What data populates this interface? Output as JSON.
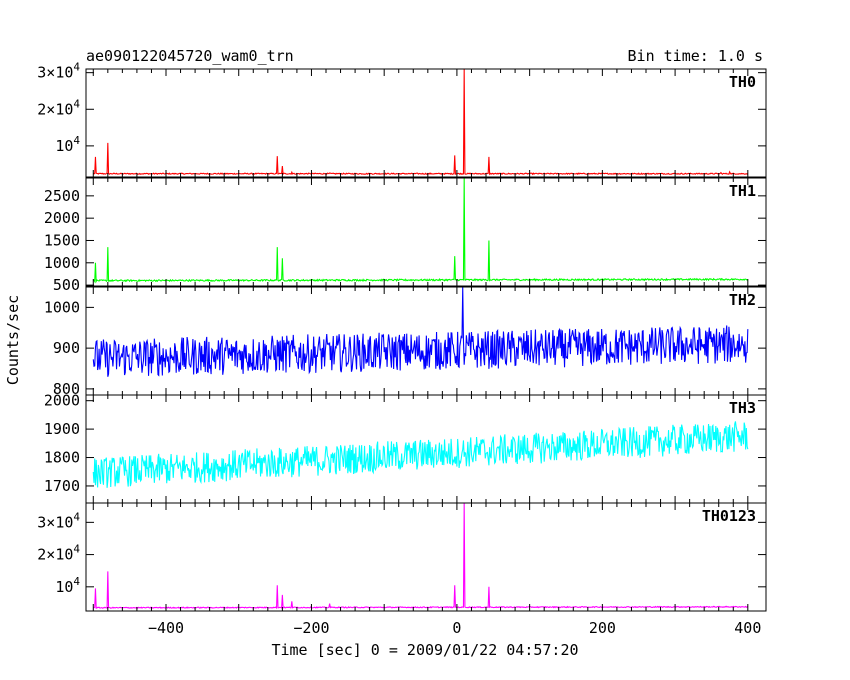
{
  "header": {
    "title": "ae090122045720_wam0_trn",
    "bin_time": "Bin time: 1.0 s"
  },
  "axes": {
    "ylabel": "Counts/sec",
    "xlabel": "Time [sec] 0 = 2009/01/22 04:57:20"
  },
  "chart_data": {
    "type": "line",
    "title": "ae090122045720_wam0_trn",
    "xlabel": "Time [sec] 0 = 2009/01/22 04:57:20",
    "ylabel": "Counts/sec",
    "xlim": [
      -510,
      425
    ],
    "x_ticks": [
      -400,
      -200,
      0,
      200,
      400
    ],
    "x_tick_labels": [
      "−400",
      "−200",
      "0",
      "200",
      "400"
    ],
    "grid": false,
    "bin_time": 1.0,
    "panels": [
      {
        "name": "TH0",
        "color": "#ff0000",
        "ylim": [
          1500,
          31000
        ],
        "yticks": [
          10000,
          20000,
          30000
        ],
        "ytick_labels": [
          [
            "",
            "10",
            "4"
          ],
          [
            "2×",
            "10",
            "4"
          ],
          [
            "3×",
            "10",
            "4"
          ]
        ],
        "baseline": 2400,
        "noise": 300,
        "trend": 0,
        "spikes": [
          [
            -497,
            7000
          ],
          [
            -480,
            10800
          ],
          [
            -247,
            7200
          ],
          [
            -240,
            4500
          ],
          [
            -227,
            2800
          ],
          [
            -175,
            2600
          ],
          [
            -3,
            7400
          ],
          [
            10,
            31000
          ],
          [
            44,
            7000
          ],
          [
            363,
            2700
          ],
          [
            375,
            2900
          ]
        ]
      },
      {
        "name": "TH1",
        "color": "#00ff00",
        "ylim": [
          480,
          2900
        ],
        "yticks": [
          500,
          1000,
          1500,
          2000,
          2500
        ],
        "ytick_labels": [
          [
            "",
            "500",
            ""
          ],
          [
            "",
            "1000",
            ""
          ],
          [
            "",
            "1500",
            ""
          ],
          [
            "",
            "2000",
            ""
          ],
          [
            "",
            "2500",
            ""
          ]
        ],
        "baseline": 600,
        "noise": 35,
        "trend": 30,
        "spikes": [
          [
            -497,
            1000
          ],
          [
            -480,
            1350
          ],
          [
            -247,
            1350
          ],
          [
            -240,
            1100
          ],
          [
            -3,
            1150
          ],
          [
            10,
            2900
          ],
          [
            44,
            1500
          ]
        ]
      },
      {
        "name": "TH2",
        "color": "#0000ff",
        "ylim": [
          785,
          1050
        ],
        "yticks": [
          800,
          900,
          1000
        ],
        "ytick_labels": [
          [
            "",
            "800",
            ""
          ],
          [
            "",
            "900",
            ""
          ],
          [
            "",
            "1000",
            ""
          ]
        ],
        "baseline": 875,
        "noise": 95,
        "trend": 35,
        "spikes": [
          [
            8,
            1050
          ]
        ]
      },
      {
        "name": "TH3",
        "color": "#00ffff",
        "ylim": [
          1640,
          2020
        ],
        "yticks": [
          1700,
          1800,
          1900,
          2000
        ],
        "ytick_labels": [
          [
            "",
            "1700",
            ""
          ],
          [
            "",
            "1800",
            ""
          ],
          [
            "",
            "1900",
            ""
          ],
          [
            "",
            "2000",
            ""
          ]
        ],
        "baseline": 1745,
        "noise": 110,
        "trend": 130,
        "spikes": []
      },
      {
        "name": "TH0123",
        "color": "#ff00ff",
        "ylim": [
          2500,
          36000
        ],
        "yticks": [
          10000,
          20000,
          30000
        ],
        "ytick_labels": [
          [
            "",
            "10",
            "4"
          ],
          [
            "2×",
            "10",
            "4"
          ],
          [
            "3×",
            "10",
            "4"
          ]
        ],
        "baseline": 3500,
        "noise": 300,
        "trend": 300,
        "spikes": [
          [
            -497,
            9500
          ],
          [
            -480,
            14800
          ],
          [
            -247,
            10500
          ],
          [
            -240,
            7500
          ],
          [
            -227,
            5500
          ],
          [
            -175,
            4800
          ],
          [
            -3,
            10500
          ],
          [
            10,
            36000
          ],
          [
            44,
            10000
          ]
        ]
      }
    ]
  }
}
